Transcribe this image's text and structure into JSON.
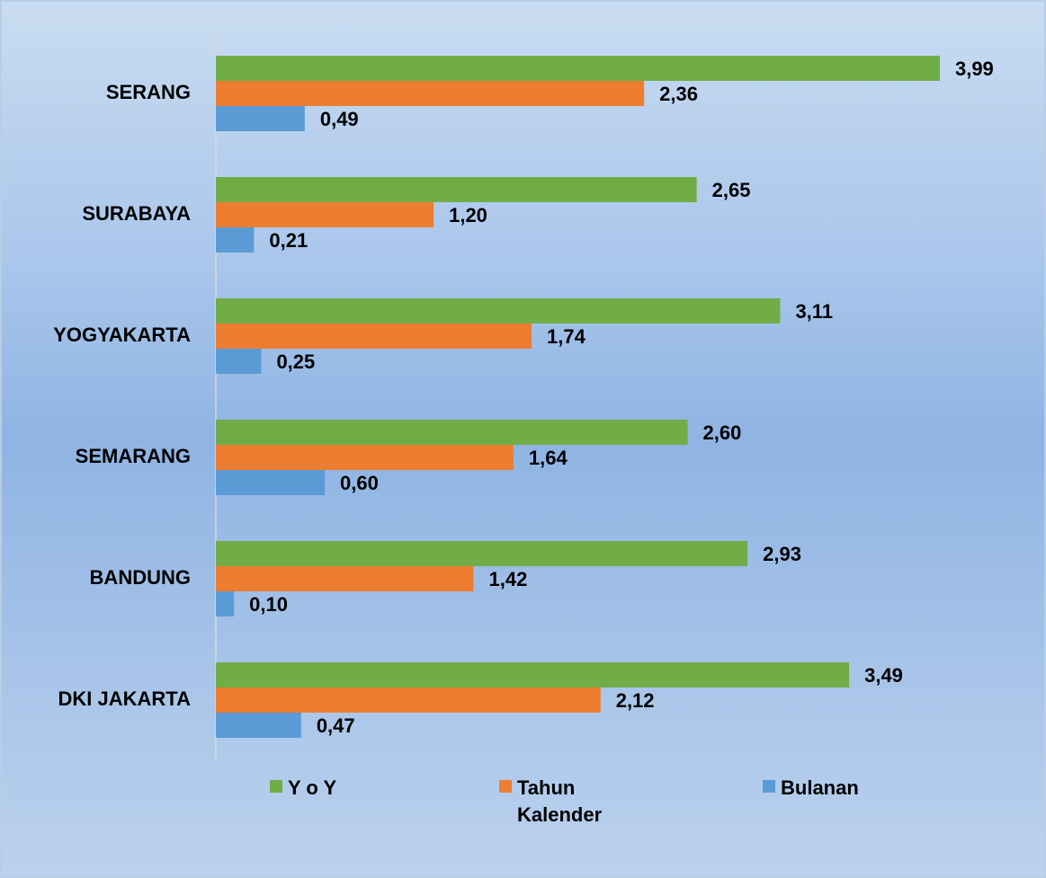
{
  "chart_data": {
    "type": "bar",
    "orientation": "horizontal",
    "categories": [
      "SERANG",
      "SURABAYA",
      "YOGYAKARTA",
      "SEMARANG",
      "BANDUNG",
      "DKI JAKARTA"
    ],
    "series": [
      {
        "name": "Y o Y",
        "color": "#70ad47",
        "values": [
          3.99,
          2.65,
          3.11,
          2.6,
          2.93,
          3.49
        ],
        "value_labels": [
          "3,99",
          "2,65",
          "3,11",
          "2,60",
          "2,93",
          "3,49"
        ]
      },
      {
        "name": "Tahun Kalender",
        "color": "#ed7d31",
        "values": [
          2.36,
          1.2,
          1.74,
          1.64,
          1.42,
          2.12
        ],
        "value_labels": [
          "2,36",
          "1,20",
          "1,74",
          "1,64",
          "1,42",
          "2,12"
        ]
      },
      {
        "name": "Bulanan",
        "color": "#5b9bd5",
        "values": [
          0.49,
          0.21,
          0.25,
          0.6,
          0.1,
          0.47
        ],
        "value_labels": [
          "0,49",
          "0,21",
          "0,25",
          "0,60",
          "0,10",
          "0,47"
        ]
      }
    ],
    "xlim": [
      0,
      4
    ],
    "legend": "bottom"
  }
}
